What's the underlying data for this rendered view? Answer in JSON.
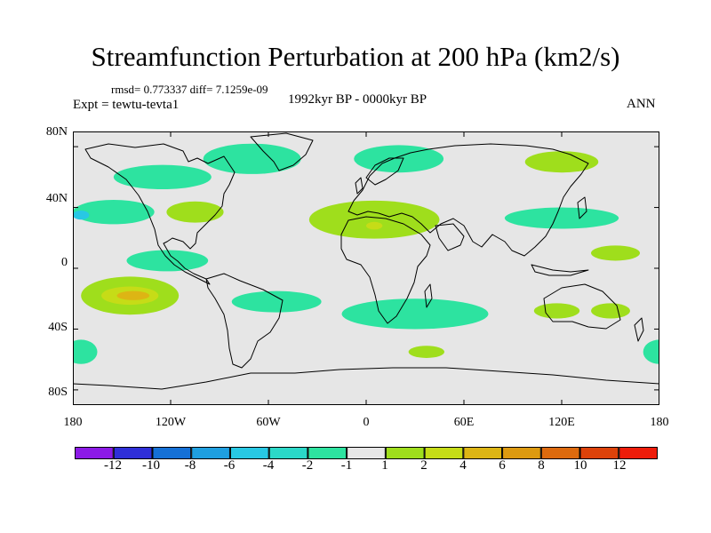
{
  "title": "Streamfunction Perturbation at 200 hPa (km2/s)",
  "stats": "rmsd= 0.773337  diff= 7.1259e-09",
  "experiment": "Expt = tewtu-tevta1",
  "period": "1992kyr BP - 0000kyr BP",
  "season": "ANN",
  "axes": {
    "lon_range": [
      -180,
      180
    ],
    "lat_range": [
      -90,
      90
    ],
    "y_ticks": [
      {
        "lat": 80,
        "label": "80N"
      },
      {
        "lat": 40,
        "label": "40N"
      },
      {
        "lat": 0,
        "label": "0"
      },
      {
        "lat": -40,
        "label": "40S"
      },
      {
        "lat": -80,
        "label": "80S"
      }
    ],
    "x_ticks": [
      {
        "lon": -180,
        "label": "180"
      },
      {
        "lon": -120,
        "label": "120W"
      },
      {
        "lon": -60,
        "label": "60W"
      },
      {
        "lon": 0,
        "label": "0"
      },
      {
        "lon": 60,
        "label": "60E"
      },
      {
        "lon": 120,
        "label": "120E"
      },
      {
        "lon": 180,
        "label": "180"
      }
    ]
  },
  "colorbar": {
    "colors": [
      "#8c1ae6",
      "#2f2fd8",
      "#1570d6",
      "#1f9fe0",
      "#28c8e4",
      "#2bd8c8",
      "#2de3a0",
      "#e6e6e6",
      "#9fde1c",
      "#c6dc17",
      "#ddb514",
      "#dd9a10",
      "#dd6a0e",
      "#dd420a",
      "#ee1c0a"
    ],
    "labels": [
      "-12",
      "-10",
      "-8",
      "-6",
      "-4",
      "-2",
      "-1",
      "1",
      "2",
      "4",
      "6",
      "8",
      "10",
      "12"
    ]
  },
  "chart_data": {
    "type": "heatmap",
    "title": "Streamfunction Perturbation at 200 hPa (km2/s)",
    "background": "#e6e6e6",
    "anomalies": [
      {
        "lon": -125,
        "lat": 60,
        "lon_span": 60,
        "lat_span": 16,
        "value": -1.5,
        "color": "#2de3a0"
      },
      {
        "lon": -70,
        "lat": 72,
        "lon_span": 60,
        "lat_span": 20,
        "value": -1.5,
        "color": "#2de3a0"
      },
      {
        "lon": -155,
        "lat": 37,
        "lon_span": 50,
        "lat_span": 16,
        "value": -1.5,
        "color": "#2de3a0"
      },
      {
        "lon": -175,
        "lat": 35,
        "lon_span": 10,
        "lat_span": 6,
        "value": -3,
        "color": "#28c8e4"
      },
      {
        "lon": 20,
        "lat": 72,
        "lon_span": 55,
        "lat_span": 18,
        "value": -1.5,
        "color": "#2de3a0"
      },
      {
        "lon": 120,
        "lat": 33,
        "lon_span": 70,
        "lat_span": 14,
        "value": -1.5,
        "color": "#2de3a0"
      },
      {
        "lon": -122,
        "lat": 5,
        "lon_span": 50,
        "lat_span": 14,
        "value": -1.5,
        "color": "#2de3a0"
      },
      {
        "lon": -55,
        "lat": -22,
        "lon_span": 55,
        "lat_span": 14,
        "value": -1.5,
        "color": "#2de3a0"
      },
      {
        "lon": 30,
        "lat": -30,
        "lon_span": 90,
        "lat_span": 20,
        "value": -1.5,
        "color": "#2de3a0"
      },
      {
        "lon": -175,
        "lat": -55,
        "lon_span": 20,
        "lat_span": 16,
        "value": -1.5,
        "color": "#2de3a0"
      },
      {
        "lon": 180,
        "lat": -55,
        "lon_span": 20,
        "lat_span": 16,
        "value": -1.5,
        "color": "#2de3a0"
      },
      {
        "lon": 120,
        "lat": 70,
        "lon_span": 45,
        "lat_span": 14,
        "value": 1.5,
        "color": "#9fde1c"
      },
      {
        "lon": -105,
        "lat": 37,
        "lon_span": 35,
        "lat_span": 14,
        "value": 1.5,
        "color": "#9fde1c"
      },
      {
        "lon": 5,
        "lat": 32,
        "lon_span": 80,
        "lat_span": 25,
        "value": 1.5,
        "color": "#9fde1c"
      },
      {
        "lon": 5,
        "lat": 28,
        "lon_span": 10,
        "lat_span": 5,
        "value": 3,
        "color": "#c6dc17"
      },
      {
        "lon": 153,
        "lat": 10,
        "lon_span": 30,
        "lat_span": 10,
        "value": 1.5,
        "color": "#9fde1c"
      },
      {
        "lon": -145,
        "lat": -18,
        "lon_span": 60,
        "lat_span": 25,
        "value": 1.5,
        "color": "#9fde1c"
      },
      {
        "lon": -145,
        "lat": -18,
        "lon_span": 35,
        "lat_span": 12,
        "value": 3,
        "color": "#c6dc17"
      },
      {
        "lon": -143,
        "lat": -18,
        "lon_span": 20,
        "lat_span": 6,
        "value": 5,
        "color": "#ddb514"
      },
      {
        "lon": 117,
        "lat": -28,
        "lon_span": 28,
        "lat_span": 10,
        "value": 1.5,
        "color": "#9fde1c"
      },
      {
        "lon": 150,
        "lat": -28,
        "lon_span": 24,
        "lat_span": 10,
        "value": 1.5,
        "color": "#9fde1c"
      },
      {
        "lon": 37,
        "lat": -55,
        "lon_span": 22,
        "lat_span": 8,
        "value": 1.5,
        "color": "#9fde1c"
      }
    ]
  }
}
